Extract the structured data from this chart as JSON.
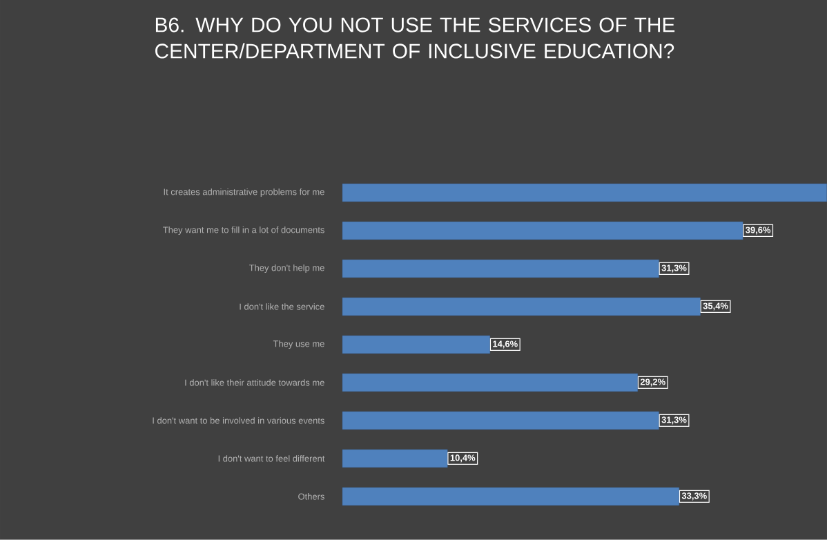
{
  "chart_data": {
    "type": "bar",
    "orientation": "horizontal",
    "title": "B6. WHY DO YOU NOT USE THE SERVICES OF THE CENTER/DEPARTMENT OF INCLUSIVE EDUCATION?",
    "categories": [
      "It creates administrative problems for me",
      "They want me to fill in a lot of documents",
      "They don't help me",
      "I don't like the service",
      "They use me",
      "I don't like their attitude towards me",
      "I don't want to be involved in various events",
      "I don't want to feel different",
      "Others"
    ],
    "values": [
      47.9,
      39.6,
      31.3,
      35.4,
      14.6,
      29.2,
      31.3,
      10.4,
      33.3
    ],
    "value_labels": [
      null,
      "39,6%",
      "31,3%",
      "35,4%",
      "14,6%",
      "29,2%",
      "31,3%",
      "10,4%",
      "33,3%"
    ],
    "color": "#4f81bd"
  }
}
